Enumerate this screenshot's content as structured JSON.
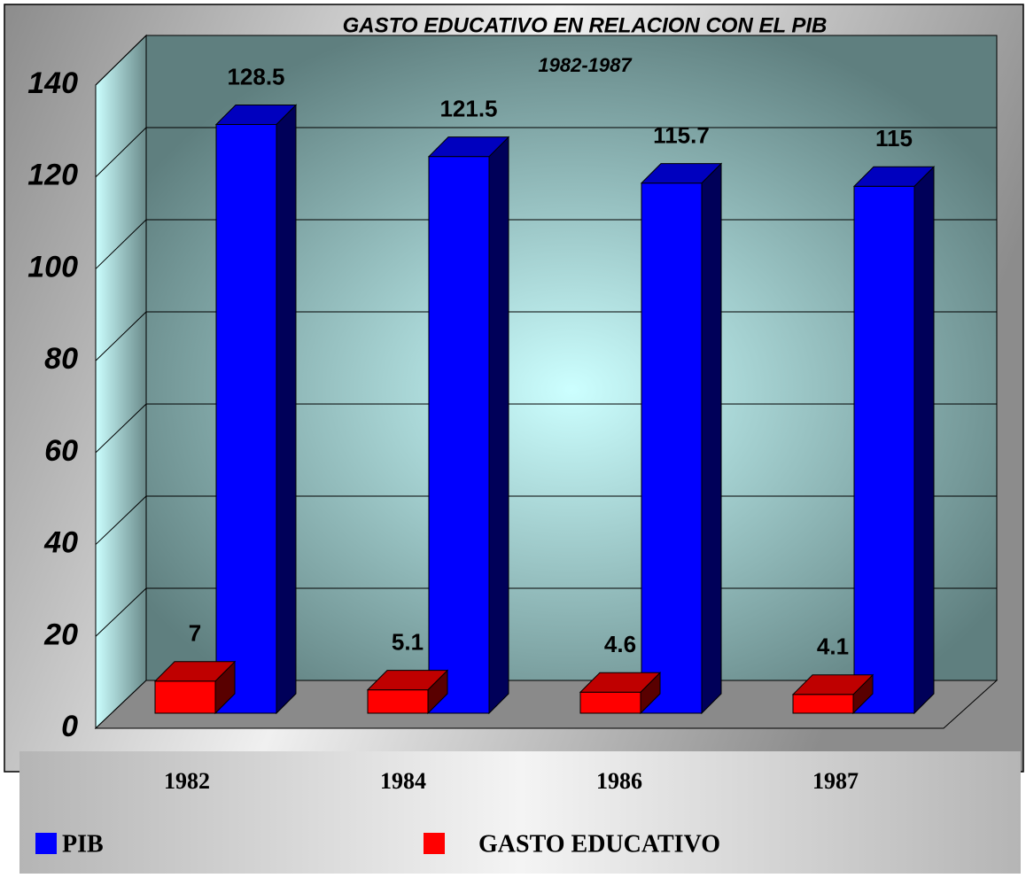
{
  "chart_data": {
    "type": "bar3d",
    "title": "GASTO EDUCATIVO EN RELACION CON EL PIB",
    "subtitle": "1982-1987",
    "categories": [
      "1982",
      "1984",
      "1986",
      "1987"
    ],
    "series": [
      {
        "name": "PIB",
        "color": "#0000ff",
        "values": [
          128.5,
          121.5,
          115.7,
          115
        ]
      },
      {
        "name": "GASTO EDUCATIVO",
        "color": "#ff0000",
        "values": [
          7,
          5.1,
          4.6,
          4.1
        ]
      }
    ],
    "ylim": [
      0,
      140
    ],
    "yticks": [
      0,
      20,
      40,
      60,
      80,
      100,
      120,
      140
    ],
    "grid": true
  }
}
